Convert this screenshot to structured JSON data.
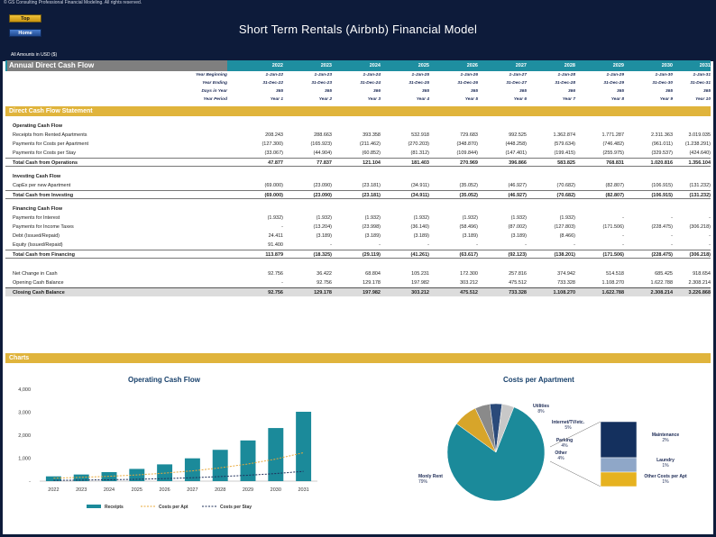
{
  "header": {
    "copyright": "© GS Consulting Professional Financial Modeling. All rights reserved.",
    "top_button": "Top",
    "home_button": "Home",
    "title": "Short Term Rentals (Airbnb) Financial Model",
    "amounts_note": "All Amounts in  USD ($)"
  },
  "sheet": {
    "title": "Annual Direct Cash Flow",
    "years": [
      "2022",
      "2023",
      "2024",
      "2025",
      "2026",
      "2027",
      "2028",
      "2029",
      "2030",
      "2031"
    ],
    "meta": [
      {
        "label": "Year Beginning",
        "values": [
          "1-Jan-22",
          "1-Jan-23",
          "1-Jan-24",
          "1-Jan-25",
          "1-Jan-26",
          "1-Jan-27",
          "1-Jan-28",
          "1-Jan-29",
          "1-Jan-30",
          "1-Jan-31"
        ]
      },
      {
        "label": "Year Ending",
        "values": [
          "31-Dec-22",
          "31-Dec-23",
          "31-Dec-24",
          "31-Dec-25",
          "31-Dec-26",
          "31-Dec-27",
          "31-Dec-28",
          "31-Dec-29",
          "31-Dec-30",
          "31-Dec-31"
        ]
      },
      {
        "label": "Days in Year",
        "values": [
          "365",
          "365",
          "366",
          "365",
          "365",
          "365",
          "366",
          "365",
          "365",
          "365"
        ]
      },
      {
        "label": "Year Period",
        "values": [
          "Year 1",
          "Year 2",
          "Year 3",
          "Year 4",
          "Year 5",
          "Year 6",
          "Year 7",
          "Year 8",
          "Year 9",
          "Year 10"
        ]
      }
    ],
    "section_title": "Direct Cash Flow Statement",
    "operating": {
      "heading": "Operating Cash Flow",
      "rows": [
        {
          "label": "Receipts from Rented Apartments",
          "values": [
            "208.243",
            "288.663",
            "393.358",
            "532.918",
            "729.683",
            "992.525",
            "1.362.874",
            "1.771.287",
            "2.311.363",
            "3.019.035"
          ]
        },
        {
          "label": "Payments for Costs per Apartment",
          "values": [
            "(127.300)",
            "(165.923)",
            "(211.462)",
            "(270.203)",
            "(348.870)",
            "(448.258)",
            "(579.634)",
            "(746.482)",
            "(961.011)",
            "(1.238.291)"
          ]
        },
        {
          "label": "Payments for Costs per Stay",
          "values": [
            "(33.067)",
            "(44.904)",
            "(60.852)",
            "(81.312)",
            "(109.844)",
            "(147.401)",
            "(199.415)",
            "(255.975)",
            "(329.537)",
            "(424.640)"
          ]
        }
      ],
      "total": {
        "label": "Total Cash from Operations",
        "values": [
          "47.877",
          "77.837",
          "121.104",
          "181.403",
          "270.969",
          "396.866",
          "583.825",
          "768.831",
          "1.020.816",
          "1.356.104"
        ]
      }
    },
    "investing": {
      "heading": "Investing Cash Flow",
      "rows": [
        {
          "label": "CapEx per new Apartment",
          "values": [
            "(69.000)",
            "(23.090)",
            "(23.181)",
            "(34.911)",
            "(35.052)",
            "(46.927)",
            "(70.682)",
            "(82.807)",
            "(106.915)",
            "(131.232)"
          ]
        }
      ],
      "total": {
        "label": "Total Cash from Investing",
        "values": [
          "(69.000)",
          "(23.090)",
          "(23.181)",
          "(34.911)",
          "(35.052)",
          "(46.927)",
          "(70.682)",
          "(82.807)",
          "(106.915)",
          "(131.232)"
        ]
      }
    },
    "financing": {
      "heading": "Financing Cash Flow",
      "rows": [
        {
          "label": "Payments for Interest",
          "values": [
            "(1.932)",
            "(1.932)",
            "(1.932)",
            "(1.932)",
            "(1.932)",
            "(1.932)",
            "(1.932)",
            "-",
            "-",
            "-"
          ]
        },
        {
          "label": "Payments for Income Taxes",
          "values": [
            "-",
            "(13.204)",
            "(23.998)",
            "(36.140)",
            "(58.496)",
            "(87.002)",
            "(127.803)",
            "(171.506)",
            "(228.475)",
            "(306.218)"
          ]
        },
        {
          "label": "Debt (Issued/Repaid)",
          "values": [
            "24.411",
            "(3.189)",
            "(3.189)",
            "(3.189)",
            "(3.189)",
            "(3.189)",
            "(8.466)",
            "-",
            "-",
            "-"
          ]
        },
        {
          "label": "Equity (Issued/Repaid)",
          "values": [
            "91.400",
            "-",
            "-",
            "-",
            "-",
            "-",
            "-",
            "-",
            "-",
            "-"
          ]
        }
      ],
      "total": {
        "label": "Total Cash from Financing",
        "values": [
          "113.879",
          "(18.325)",
          "(29.119)",
          "(41.261)",
          "(63.617)",
          "(92.123)",
          "(138.201)",
          "(171.506)",
          "(228.475)",
          "(306.218)"
        ]
      }
    },
    "summary": [
      {
        "label": "Net Change in Cash",
        "values": [
          "92.756",
          "36.422",
          "68.804",
          "105.231",
          "172.300",
          "257.816",
          "374.942",
          "514.518",
          "685.425",
          "918.654"
        ]
      },
      {
        "label": "Opening Cash Balance",
        "values": [
          "-",
          "92.756",
          "129.178",
          "197.982",
          "303.212",
          "475.512",
          "733.328",
          "1.108.270",
          "1.622.788",
          "2.308.214"
        ]
      }
    ],
    "closing": {
      "label": "Closing Cash Balance",
      "values": [
        "92.756",
        "129.178",
        "197.982",
        "303.212",
        "475.512",
        "733.328",
        "1.108.270",
        "1.622.788",
        "2.308.214",
        "3.226.868"
      ]
    }
  },
  "charts_title": "Charts",
  "chart_data": [
    {
      "type": "bar",
      "title": "Operating Cash Flow",
      "categories": [
        "2022",
        "2023",
        "2024",
        "2025",
        "2026",
        "2027",
        "2028",
        "2029",
        "2030",
        "2031"
      ],
      "ylim": [
        0,
        4000
      ],
      "yticks": [
        "-",
        "1,000",
        "2,000",
        "3,000",
        "4,000"
      ],
      "series": [
        {
          "name": "Receipts",
          "kind": "bar",
          "values": [
            208,
            289,
            393,
            533,
            730,
            993,
            1363,
            1771,
            2311,
            3019
          ]
        },
        {
          "name": "Costs per Apt",
          "kind": "line",
          "values": [
            127,
            166,
            211,
            270,
            349,
            448,
            580,
            746,
            961,
            1238
          ]
        },
        {
          "name": "Costs per Stay",
          "kind": "line",
          "values": [
            33,
            45,
            61,
            81,
            110,
            147,
            199,
            256,
            330,
            425
          ]
        }
      ],
      "colors": {
        "Receipts": "#1b8a9a",
        "Costs per Apt": "#e8a83a",
        "Costs per Stay": "#1f2f5a"
      }
    },
    {
      "type": "pie",
      "title": "Costs per Apartment",
      "slices": [
        {
          "label": "Monly Rent",
          "value": 79,
          "pct": "79%",
          "color": "#1b8a9a"
        },
        {
          "label": "Utilities",
          "value": 8,
          "pct": "8%",
          "color": "#d7a52a"
        },
        {
          "label": "Internet/TV/etc.",
          "value": 5,
          "pct": "5%",
          "color": "#8a8a8a"
        },
        {
          "label": "Parking",
          "value": 4,
          "pct": "4%",
          "color": "#2a4a7a"
        },
        {
          "label": "Other",
          "value": 4,
          "pct": "4%",
          "color": "#c8c8c8"
        }
      ],
      "breakdown": [
        {
          "label": "Maintenance",
          "pct": "2%",
          "color": "#14305e"
        },
        {
          "label": "Laundry",
          "pct": "1%",
          "color": "#8fa7c8"
        },
        {
          "label": "Other Costs per Apt",
          "pct": "1%",
          "color": "#e6b220"
        }
      ]
    }
  ]
}
